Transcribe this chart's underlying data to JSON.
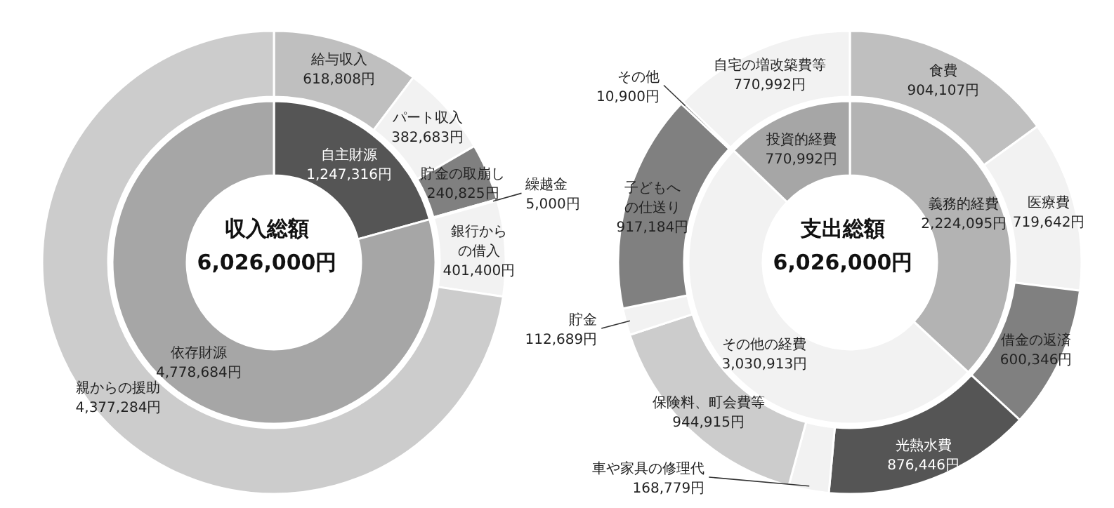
{
  "chart_data": [
    {
      "type": "donut",
      "title": "収入総額",
      "annotations": [
        "6,026,000円"
      ],
      "categories": [
        "自主財源",
        "依存財源"
      ],
      "values": [
        1247316,
        4778684
      ],
      "colors": [
        "#555555",
        "#a6a6a6"
      ],
      "value_labels": [
        "1,247,316円",
        "4,778,684円"
      ]
    },
    {
      "type": "donut",
      "categories": [
        "給与収入",
        "パート収入",
        "貯金の取崩し",
        "繰越金",
        "銀行からの借入",
        "親からの援助"
      ],
      "values": [
        618808,
        382683,
        240825,
        5000,
        401400,
        4377284
      ],
      "colors": [
        "#bfbfbf",
        "#f2f2f2",
        "#808080",
        "#404040",
        "#f2f2f2",
        "#cccccc"
      ],
      "value_labels": [
        "618,808円",
        "382,683円",
        "240,825円",
        "5,000円",
        "401,400円",
        "4,377,284円"
      ]
    },
    {
      "type": "donut",
      "title": "支出総額",
      "annotations": [
        "6,026,000円"
      ],
      "categories": [
        "義務的経費",
        "その他の経費",
        "投資的経費"
      ],
      "values": [
        2224095,
        3030913,
        770992
      ],
      "colors": [
        "#b3b3b3",
        "#f2f2f2",
        "#a6a6a6"
      ],
      "value_labels": [
        "2,224,095円",
        "3,030,913円",
        "770,992円"
      ]
    },
    {
      "type": "donut",
      "categories": [
        "食費",
        "医療費",
        "借金の返済",
        "光熱水費",
        "車や家具の修理代",
        "保険料、町会費等",
        "貯金",
        "子どもへの仕送り",
        "その他",
        "自宅の増改築費等"
      ],
      "values": [
        904107,
        719642,
        600346,
        876446,
        168779,
        944915,
        112689,
        917184,
        10900,
        770992
      ],
      "colors": [
        "#bfbfbf",
        "#f2f2f2",
        "#808080",
        "#555555",
        "#f2f2f2",
        "#cccccc",
        "#f2f2f2",
        "#808080",
        "#404040",
        "#f2f2f2"
      ],
      "value_labels": [
        "904,107円",
        "719,642円",
        "600,346円",
        "876,446円",
        "168,779円",
        "944,915円",
        "112,689円",
        "917,184円",
        "10,900円",
        "770,992円"
      ]
    }
  ]
}
